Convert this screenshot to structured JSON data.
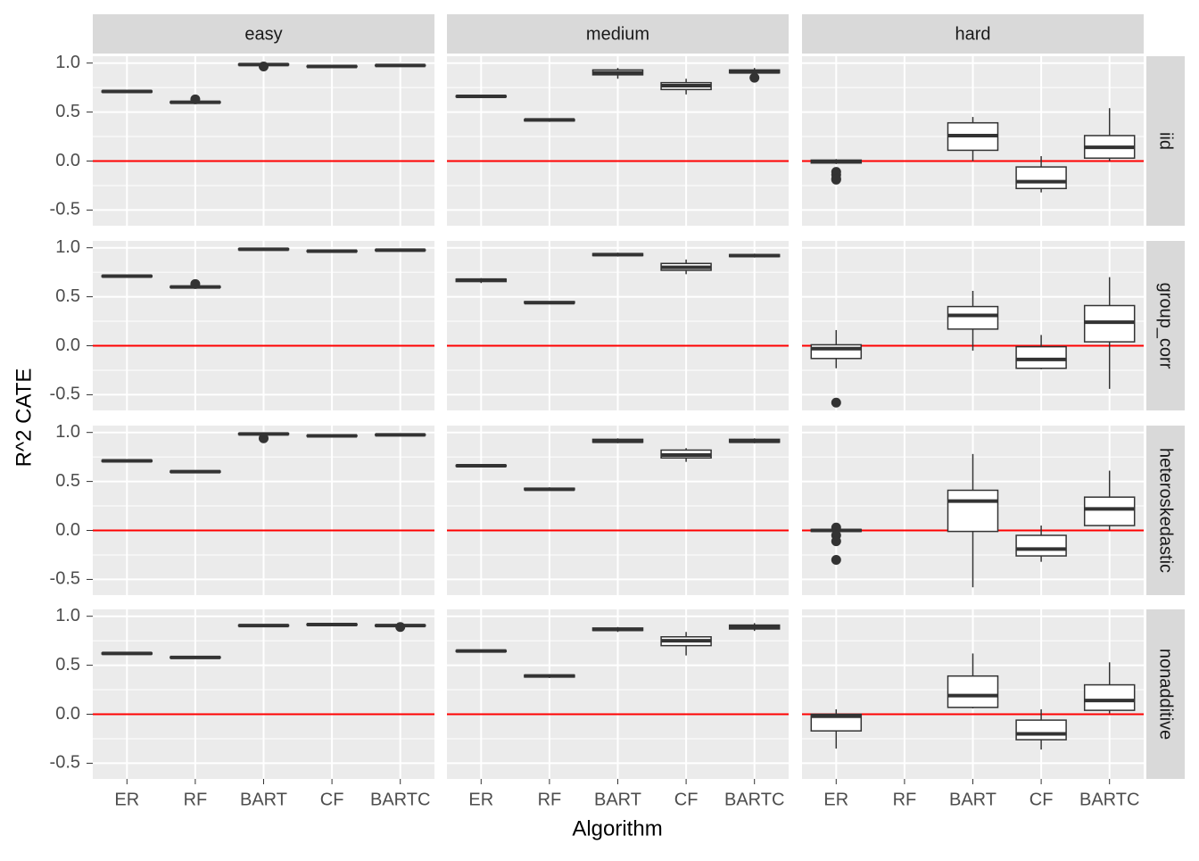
{
  "chart_data": {
    "type": "box",
    "xlabel": "Algorithm",
    "ylabel": "R^2 CATE",
    "facet_columns": [
      "easy",
      "medium",
      "hard"
    ],
    "facet_rows": [
      "iid",
      "group_corr",
      "heteroskedastic",
      "nonadditive"
    ],
    "categories": [
      "ER",
      "RF",
      "BART",
      "CF",
      "BARTC"
    ],
    "ylim": [
      -0.66,
      1.07
    ],
    "yticks": [
      -0.5,
      {
        "value": 0,
        "label": "0.0"
      },
      0.5,
      {
        "value": 1,
        "label": "1.0"
      }
    ],
    "yminorticks": [
      -0.25,
      0.25,
      0.75
    ],
    "grid": true,
    "hline": {
      "value": 0,
      "color": "#ff0000"
    },
    "box_color": "#333333",
    "panels": [
      [
        [
          {
            "stats": [
              0.7,
              0.705,
              0.71,
              0.715,
              0.72
            ]
          },
          {
            "stats": [
              0.59,
              0.595,
              0.6,
              0.605,
              0.61
            ],
            "outliers": [
              0.63
            ]
          },
          {
            "stats": [
              0.97,
              0.98,
              0.985,
              0.99,
              0.995
            ],
            "outliers": [
              0.965
            ]
          },
          {
            "stats": [
              0.96,
              0.963,
              0.965,
              0.968,
              0.97
            ]
          },
          {
            "stats": [
              0.97,
              0.973,
              0.975,
              0.978,
              0.98
            ]
          }
        ],
        [
          {
            "stats": [
              0.65,
              0.655,
              0.66,
              0.665,
              0.67
            ]
          },
          {
            "stats": [
              0.4,
              0.41,
              0.42,
              0.425,
              0.43
            ]
          },
          {
            "stats": [
              0.84,
              0.88,
              0.9,
              0.93,
              0.95
            ]
          },
          {
            "stats": [
              0.68,
              0.73,
              0.77,
              0.8,
              0.84
            ]
          },
          {
            "stats": [
              0.88,
              0.9,
              0.91,
              0.93,
              0.95
            ],
            "outliers": [
              0.85
            ]
          }
        ],
        [
          {
            "stats": [
              -0.03,
              -0.02,
              -0.005,
              0.01,
              0.02
            ],
            "outliers": [
              -0.11,
              -0.14,
              -0.18,
              -0.19
            ]
          },
          null,
          {
            "stats": [
              0.0,
              0.11,
              0.26,
              0.39,
              0.45
            ]
          },
          {
            "stats": [
              -0.32,
              -0.28,
              -0.21,
              -0.06,
              0.05
            ]
          },
          {
            "stats": [
              0.0,
              0.03,
              0.14,
              0.26,
              0.54
            ]
          }
        ]
      ],
      [
        [
          {
            "stats": [
              0.7,
              0.705,
              0.71,
              0.715,
              0.72
            ]
          },
          {
            "stats": [
              0.59,
              0.595,
              0.6,
              0.605,
              0.61
            ],
            "outliers": [
              0.63
            ]
          },
          {
            "stats": [
              0.975,
              0.98,
              0.985,
              0.99,
              0.995
            ]
          },
          {
            "stats": [
              0.96,
              0.963,
              0.965,
              0.968,
              0.97
            ]
          },
          {
            "stats": [
              0.97,
              0.973,
              0.975,
              0.978,
              0.98
            ]
          }
        ],
        [
          {
            "stats": [
              0.64,
              0.655,
              0.67,
              0.68,
              0.69
            ]
          },
          {
            "stats": [
              0.43,
              0.435,
              0.44,
              0.45,
              0.455
            ]
          },
          {
            "stats": [
              0.91,
              0.92,
              0.93,
              0.94,
              0.95
            ]
          },
          {
            "stats": [
              0.73,
              0.77,
              0.8,
              0.84,
              0.88
            ]
          },
          {
            "stats": [
              0.9,
              0.91,
              0.92,
              0.93,
              0.94
            ]
          }
        ],
        [
          {
            "stats": [
              -0.23,
              -0.13,
              -0.03,
              0.01,
              0.16
            ],
            "outliers": [
              -0.58
            ]
          },
          null,
          {
            "stats": [
              -0.05,
              0.17,
              0.31,
              0.4,
              0.56
            ]
          },
          {
            "stats": [
              -0.24,
              -0.23,
              -0.14,
              -0.01,
              0.11
            ]
          },
          {
            "stats": [
              -0.44,
              0.04,
              0.24,
              0.41,
              0.7
            ]
          }
        ]
      ],
      [
        [
          {
            "stats": [
              0.7,
              0.705,
              0.71,
              0.715,
              0.72
            ]
          },
          {
            "stats": [
              0.59,
              0.595,
              0.6,
              0.605,
              0.61
            ]
          },
          {
            "stats": [
              0.975,
              0.98,
              0.985,
              0.99,
              0.995
            ],
            "outliers": [
              0.94
            ]
          },
          {
            "stats": [
              0.96,
              0.963,
              0.965,
              0.968,
              0.97
            ]
          },
          {
            "stats": [
              0.97,
              0.973,
              0.975,
              0.978,
              0.98
            ]
          }
        ],
        [
          {
            "stats": [
              0.65,
              0.655,
              0.66,
              0.665,
              0.67
            ]
          },
          {
            "stats": [
              0.41,
              0.415,
              0.42,
              0.43,
              0.44
            ]
          },
          {
            "stats": [
              0.89,
              0.9,
              0.91,
              0.93,
              0.94
            ]
          },
          {
            "stats": [
              0.7,
              0.74,
              0.77,
              0.82,
              0.84
            ]
          },
          {
            "stats": [
              0.89,
              0.9,
              0.91,
              0.93,
              0.94
            ]
          }
        ],
        [
          {
            "stats": [
              -0.02,
              -0.01,
              0.0,
              0.01,
              0.02
            ],
            "outliers": [
              0.03,
              -0.05,
              -0.11,
              -0.3
            ]
          },
          null,
          {
            "stats": [
              -0.58,
              -0.01,
              0.3,
              0.41,
              0.78
            ]
          },
          {
            "stats": [
              -0.32,
              -0.26,
              -0.19,
              -0.05,
              0.05
            ]
          },
          {
            "stats": [
              0.0,
              0.05,
              0.22,
              0.34,
              0.61
            ]
          }
        ]
      ],
      [
        [
          {
            "stats": [
              0.61,
              0.615,
              0.62,
              0.625,
              0.63
            ]
          },
          {
            "stats": [
              0.57,
              0.575,
              0.58,
              0.585,
              0.59
            ]
          },
          {
            "stats": [
              0.895,
              0.9,
              0.905,
              0.91,
              0.915
            ]
          },
          {
            "stats": [
              0.905,
              0.91,
              0.915,
              0.92,
              0.925
            ]
          },
          {
            "stats": [
              0.895,
              0.9,
              0.905,
              0.91,
              0.92
            ],
            "outliers": [
              0.89
            ]
          }
        ],
        [
          {
            "stats": [
              0.63,
              0.64,
              0.645,
              0.65,
              0.66
            ]
          },
          {
            "stats": [
              0.37,
              0.38,
              0.39,
              0.4,
              0.41
            ]
          },
          {
            "stats": [
              0.84,
              0.855,
              0.865,
              0.88,
              0.89
            ]
          },
          {
            "stats": [
              0.6,
              0.7,
              0.75,
              0.79,
              0.84
            ]
          },
          {
            "stats": [
              0.85,
              0.87,
              0.89,
              0.91,
              0.93
            ]
          }
        ],
        [
          {
            "stats": [
              -0.35,
              -0.17,
              -0.02,
              0.0,
              0.05
            ]
          },
          null,
          {
            "stats": [
              0.06,
              0.07,
              0.19,
              0.39,
              0.62
            ]
          },
          {
            "stats": [
              -0.36,
              -0.26,
              -0.2,
              -0.06,
              0.05
            ]
          },
          {
            "stats": [
              0.01,
              0.04,
              0.14,
              0.3,
              0.53
            ]
          }
        ]
      ]
    ]
  }
}
